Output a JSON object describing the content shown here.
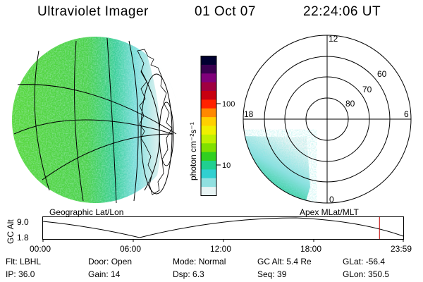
{
  "header": {
    "title": "Ultraviolet Imager",
    "date": "01 Oct 07",
    "time": "22:24:06 UT"
  },
  "colorbar": {
    "unit_label": "photon cm⁻²s⁻¹",
    "ticks": [
      "100",
      "10"
    ],
    "colors": [
      "#000030",
      "#3a0050",
      "#80007a",
      "#a00040",
      "#c80010",
      "#ff2200",
      "#ff8800",
      "#ffd000",
      "#f0f000",
      "#c0f000",
      "#80e000",
      "#30d020",
      "#20d090",
      "#30d0d0",
      "#90e0e0",
      "#e8f4f4"
    ]
  },
  "polar": {
    "mlt_labels": {
      "top": "12",
      "left": "18",
      "right": "6",
      "bottom": "0"
    },
    "lat_labels": [
      "60",
      "70",
      "80"
    ]
  },
  "map_labels": {
    "left": "Geographic Lat/Lon",
    "right": "Apex MLat/MLT"
  },
  "timeline": {
    "y_label": "GC Alt",
    "y_tick_top": "9.0",
    "y_tick_bottom": "1.8",
    "x_ticks": [
      "00:00",
      "06:00",
      "12:00",
      "18:00",
      "23:59"
    ],
    "marker_time": "22:24",
    "marker_color": "#c00000"
  },
  "info": {
    "row1": [
      {
        "key": "Flt:",
        "value": "LBHL"
      },
      {
        "key": "Door:",
        "value": "Open"
      },
      {
        "key": "Mode:",
        "value": "Normal"
      },
      {
        "key": "GC Alt:",
        "value": "5.4 Re"
      },
      {
        "key": "GLat:",
        "value": "-56.4"
      }
    ],
    "row2": [
      {
        "key": "IP:",
        "value": "36.0"
      },
      {
        "key": "Gain:",
        "value": "14"
      },
      {
        "key": "Dsp:",
        "value": "6.3"
      },
      {
        "key": "Seq:",
        "value": "39"
      },
      {
        "key": "GLon:",
        "value": "350.5"
      }
    ]
  }
}
